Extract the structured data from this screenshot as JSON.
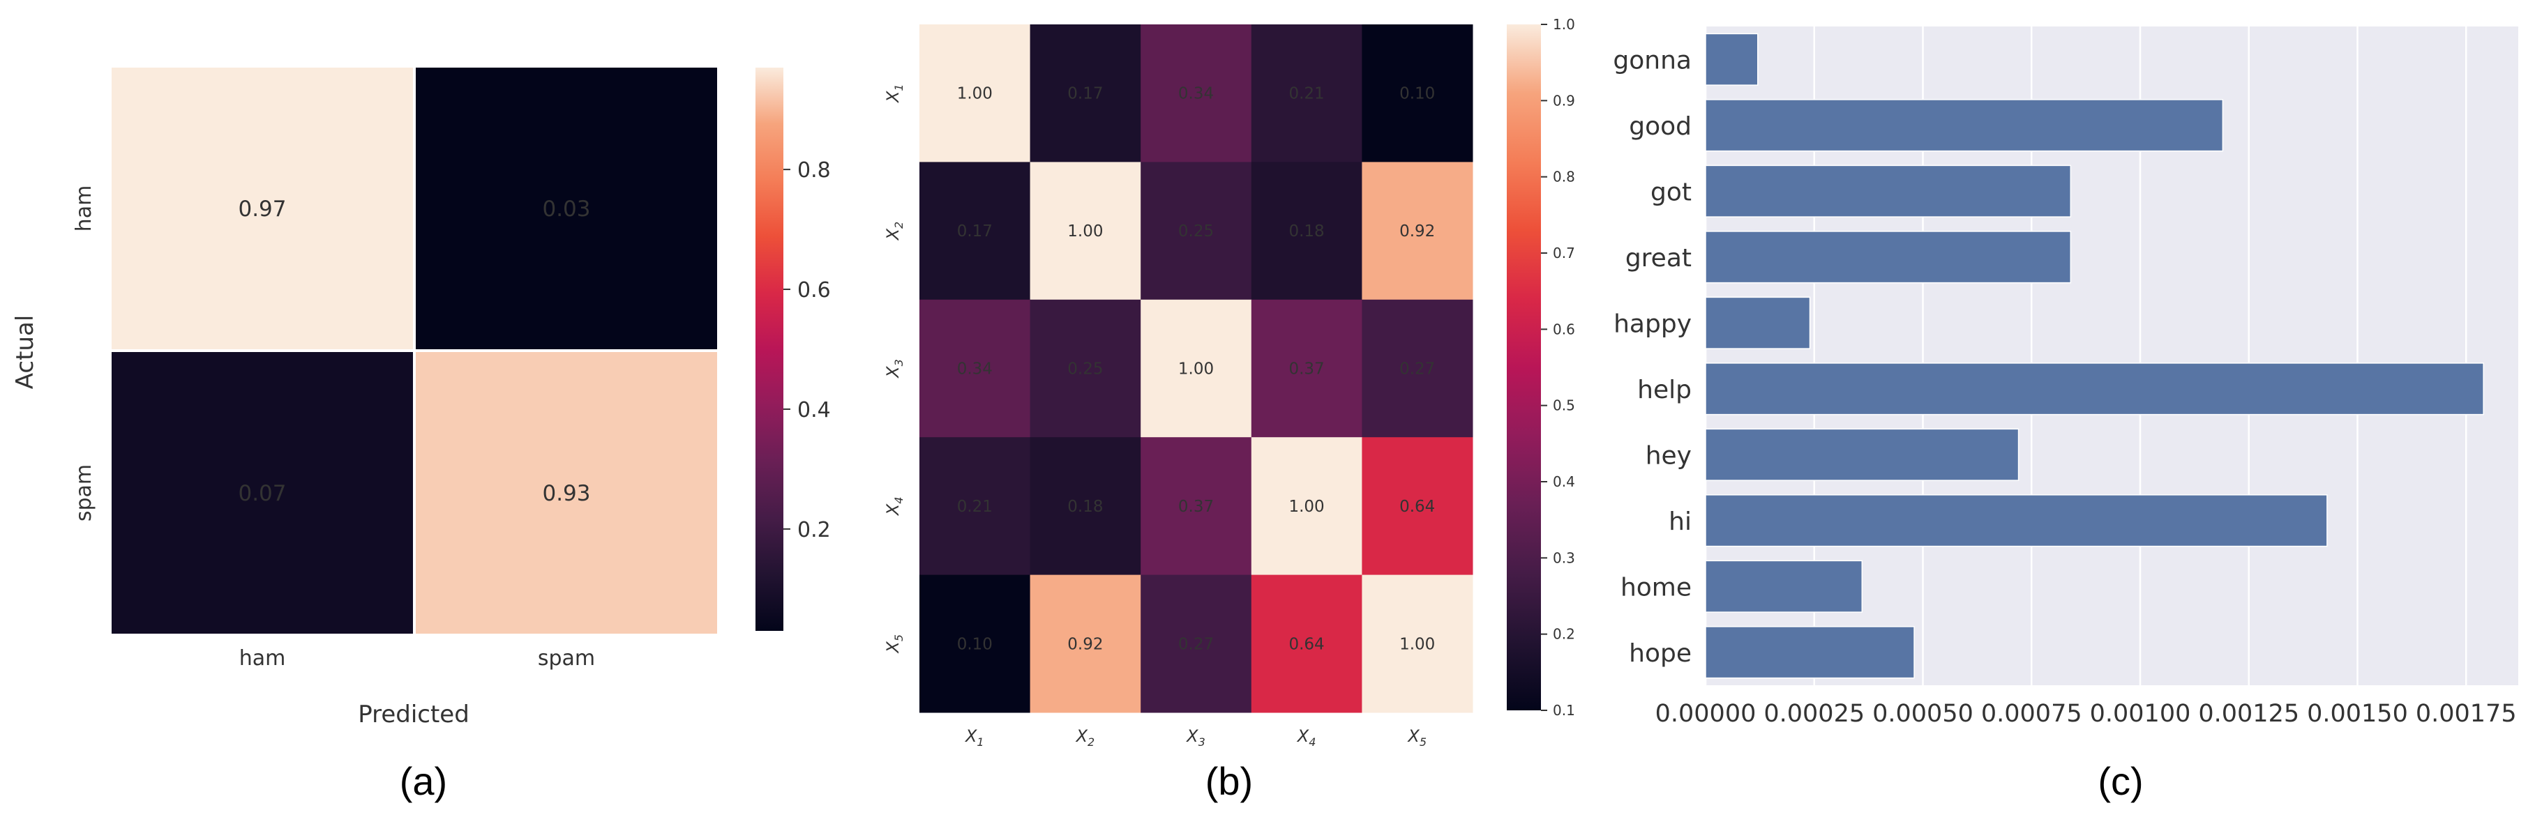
{
  "figure_labels": {
    "a": "(a)",
    "b": "(b)",
    "c": "(c)"
  },
  "chart_data": [
    {
      "id": "a",
      "type": "heatmap",
      "title": "",
      "xlabel": "Predicted",
      "ylabel": "Actual",
      "x_categories": [
        "ham",
        "spam"
      ],
      "y_categories": [
        "ham",
        "spam"
      ],
      "values": [
        [
          0.97,
          0.03
        ],
        [
          0.07,
          0.93
        ]
      ],
      "value_labels": [
        [
          "0.97",
          "0.03"
        ],
        [
          "0.07",
          "0.93"
        ]
      ],
      "colorbar": {
        "vmin": 0.03,
        "vmax": 0.97,
        "ticks": [
          0.2,
          0.4,
          0.6,
          0.8
        ],
        "tick_labels": [
          "0.2",
          "0.4",
          "0.6",
          "0.8"
        ]
      }
    },
    {
      "id": "b",
      "type": "heatmap",
      "title": "",
      "x_categories": [
        "X1",
        "X2",
        "X3",
        "X4",
        "X5"
      ],
      "y_categories": [
        "X1",
        "X2",
        "X3",
        "X4",
        "X5"
      ],
      "values": [
        [
          1.0,
          0.17,
          0.34,
          0.21,
          0.1
        ],
        [
          0.17,
          1.0,
          0.25,
          0.18,
          0.92
        ],
        [
          0.34,
          0.25,
          1.0,
          0.37,
          0.27
        ],
        [
          0.21,
          0.18,
          0.37,
          1.0,
          0.64
        ],
        [
          0.1,
          0.92,
          0.27,
          0.64,
          1.0
        ]
      ],
      "value_labels": [
        [
          "1.00",
          "0.17",
          "0.34",
          "0.21",
          "0.10"
        ],
        [
          "0.17",
          "1.00",
          "0.25",
          "0.18",
          "0.92"
        ],
        [
          "0.34",
          "0.25",
          "1.00",
          "0.37",
          "0.27"
        ],
        [
          "0.21",
          "0.18",
          "0.37",
          "1.00",
          "0.64"
        ],
        [
          "0.10",
          "0.92",
          "0.27",
          "0.64",
          "1.00"
        ]
      ],
      "colorbar": {
        "vmin": 0.1,
        "vmax": 1.0,
        "ticks": [
          0.1,
          0.2,
          0.3,
          0.4,
          0.5,
          0.6,
          0.7,
          0.8,
          0.9,
          1.0
        ],
        "tick_labels": [
          "0.1",
          "0.2",
          "0.3",
          "0.4",
          "0.5",
          "0.6",
          "0.7",
          "0.8",
          "0.9",
          "1.0"
        ]
      }
    },
    {
      "id": "c",
      "type": "bar",
      "orientation": "horizontal",
      "title": "",
      "xlabel": "",
      "ylabel": "",
      "categories": [
        "gonna",
        "good",
        "got",
        "great",
        "happy",
        "help",
        "hey",
        "hi",
        "home",
        "hope"
      ],
      "values": [
        0.00012,
        0.00119,
        0.00084,
        0.00084,
        0.00024,
        0.00179,
        0.00072,
        0.00143,
        0.00036,
        0.00048
      ],
      "xlim": [
        0,
        0.00187
      ],
      "xticks": [
        0,
        0.00025,
        0.0005,
        0.00075,
        0.001,
        0.00125,
        0.0015,
        0.00175
      ],
      "xtick_labels": [
        "0.00000",
        "0.00025",
        "0.00050",
        "0.00075",
        "0.00100",
        "0.00125",
        "0.00150",
        "0.00175"
      ],
      "grid": true,
      "bar_color": "#5875a4",
      "background": "#eaeaf2"
    }
  ]
}
